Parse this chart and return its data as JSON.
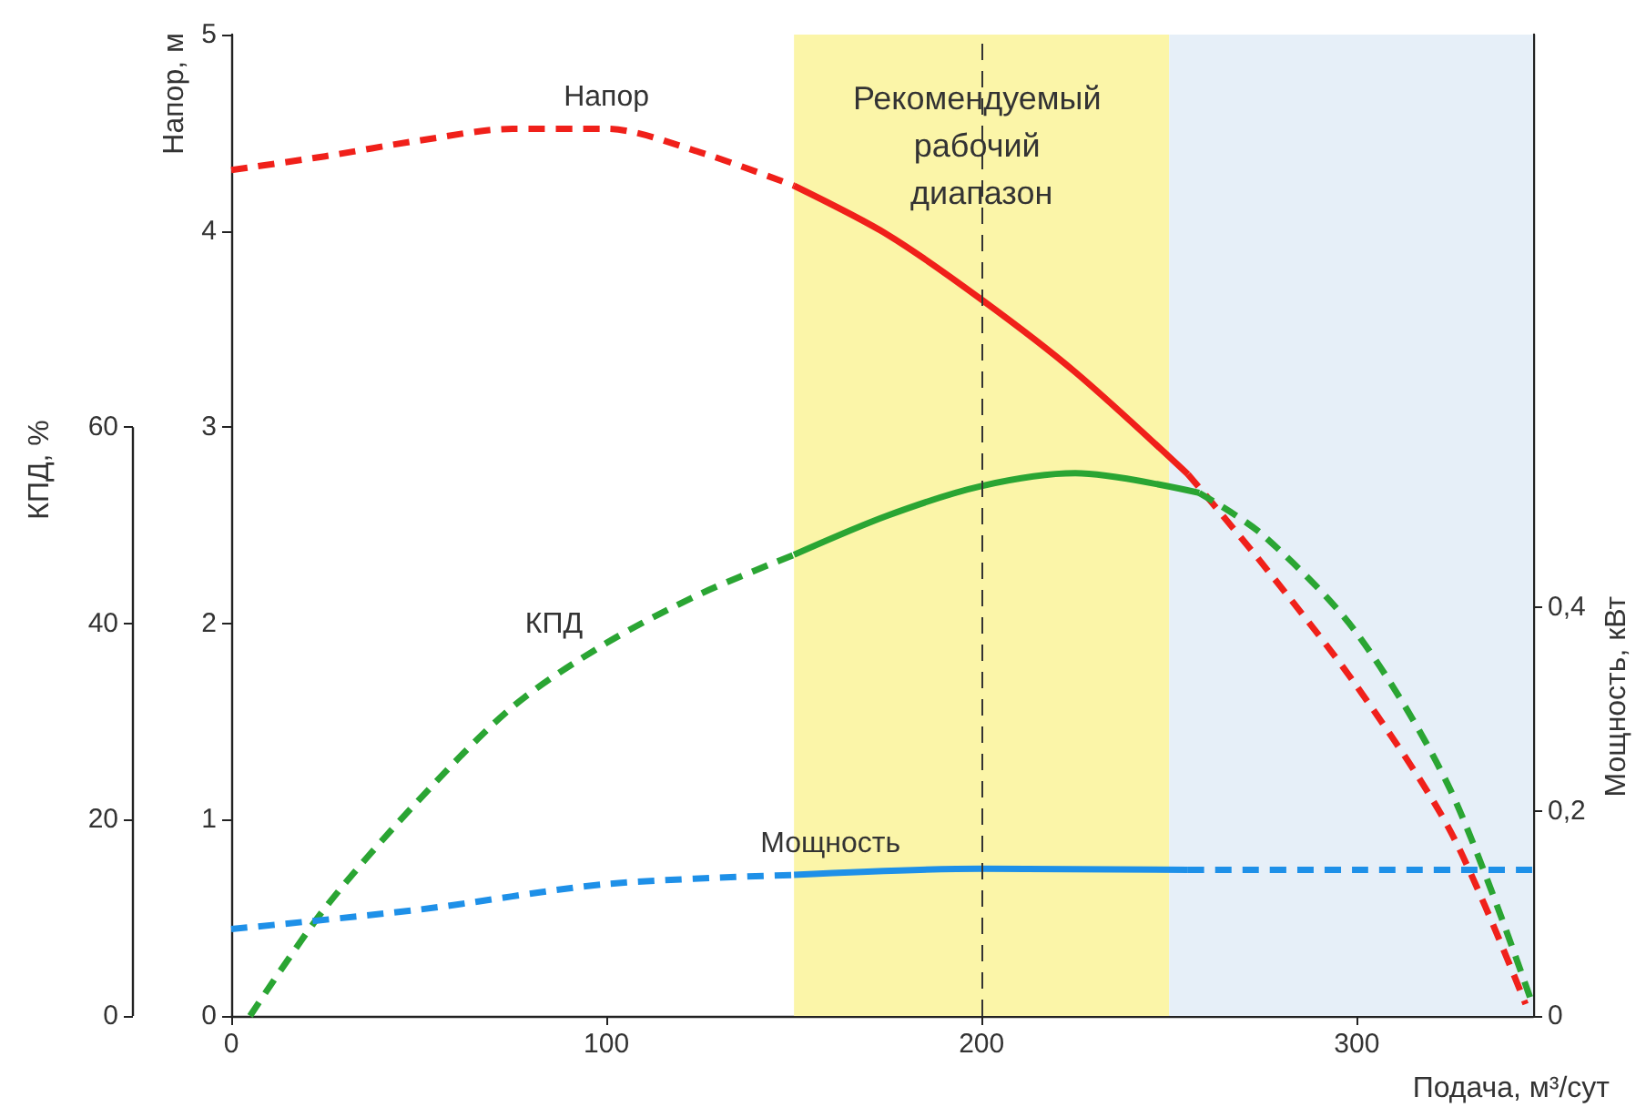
{
  "chart_data": {
    "type": "line",
    "xlabel": "Подача, м³/сут",
    "ylabel": "Напор, м",
    "y2label": "КПД, %",
    "y3label": "Мощность, кВт",
    "xlim": [
      0,
      347
    ],
    "xticks": [
      0,
      100,
      200,
      300
    ],
    "ylim": [
      0,
      5
    ],
    "yticks": [
      0,
      1,
      2,
      3,
      4,
      5
    ],
    "y2lim": [
      0,
      100
    ],
    "y2ticks": [
      0,
      20,
      40,
      60
    ],
    "y3lim": [
      0,
      0.96
    ],
    "y3ticks": [
      0,
      {
        "value": 0.2,
        "label": "0,2"
      },
      {
        "value": 0.4,
        "label": "0,4"
      }
    ],
    "grid": false,
    "legend": false,
    "marker": "none",
    "bands": [
      {
        "axis": "x",
        "from": 150,
        "to": 250,
        "label": "Рекомендуемый рабочий диапазон",
        "color": "#fbf5a8"
      },
      {
        "axis": "x",
        "from": 250,
        "to": 347,
        "label": null,
        "color": "#e6eff8"
      }
    ],
    "ref_lines": [
      {
        "axis": "x",
        "value": 200,
        "label": null,
        "color": "#333333",
        "line_style": "dashed"
      }
    ],
    "series": [
      {
        "name": "Напор",
        "color": "#f0201a",
        "axis": "y",
        "line_style": "dashed",
        "x": [
          0,
          25,
          50,
          75,
          100,
          125,
          150
        ],
        "values": [
          4.31,
          4.38,
          4.46,
          4.52,
          4.52,
          4.4,
          4.23
        ]
      },
      {
        "color": "#f0201a",
        "axis": "y",
        "line_style": "solid",
        "x": [
          150,
          175,
          200,
          225,
          255
        ],
        "values": [
          4.23,
          3.98,
          3.65,
          3.28,
          2.76
        ]
      },
      {
        "color": "#f0201a",
        "axis": "y",
        "line_style": "dashed",
        "x": [
          255,
          275,
          300,
          325,
          345
        ],
        "values": [
          2.76,
          2.3,
          1.68,
          0.94,
          0.06
        ]
      },
      {
        "name": "КПД",
        "color": "#2aa533",
        "axis": "y2",
        "line_style": "dashed",
        "x": [
          5,
          25,
          50,
          75,
          100,
          125,
          150
        ],
        "values": [
          0,
          11,
          22,
          31.5,
          38,
          43,
          47
        ]
      },
      {
        "color": "#2aa533",
        "axis": "y2",
        "line_style": "solid",
        "x": [
          150,
          175,
          200,
          225,
          258
        ],
        "values": [
          47,
          51,
          54,
          55.3,
          53.3
        ]
      },
      {
        "color": "#2aa533",
        "axis": "y2",
        "line_style": "dashed",
        "x": [
          258,
          275,
          300,
          325,
          347
        ],
        "values": [
          53.3,
          49,
          39,
          23,
          1
        ]
      },
      {
        "name": "Мощность",
        "color": "#1e90e8",
        "axis": "y3",
        "line_style": "dashed",
        "x": [
          0,
          50,
          100,
          150
        ],
        "values": [
          0.085,
          0.104,
          0.129,
          0.138
        ]
      },
      {
        "color": "#1e90e8",
        "axis": "y3",
        "line_style": "solid",
        "x": [
          150,
          200,
          255
        ],
        "values": [
          0.138,
          0.144,
          0.143
        ]
      },
      {
        "color": "#1e90e8",
        "axis": "y3",
        "line_style": "dashed",
        "x": [
          255,
          300,
          347
        ],
        "values": [
          0.143,
          0.143,
          0.143
        ]
      }
    ]
  }
}
